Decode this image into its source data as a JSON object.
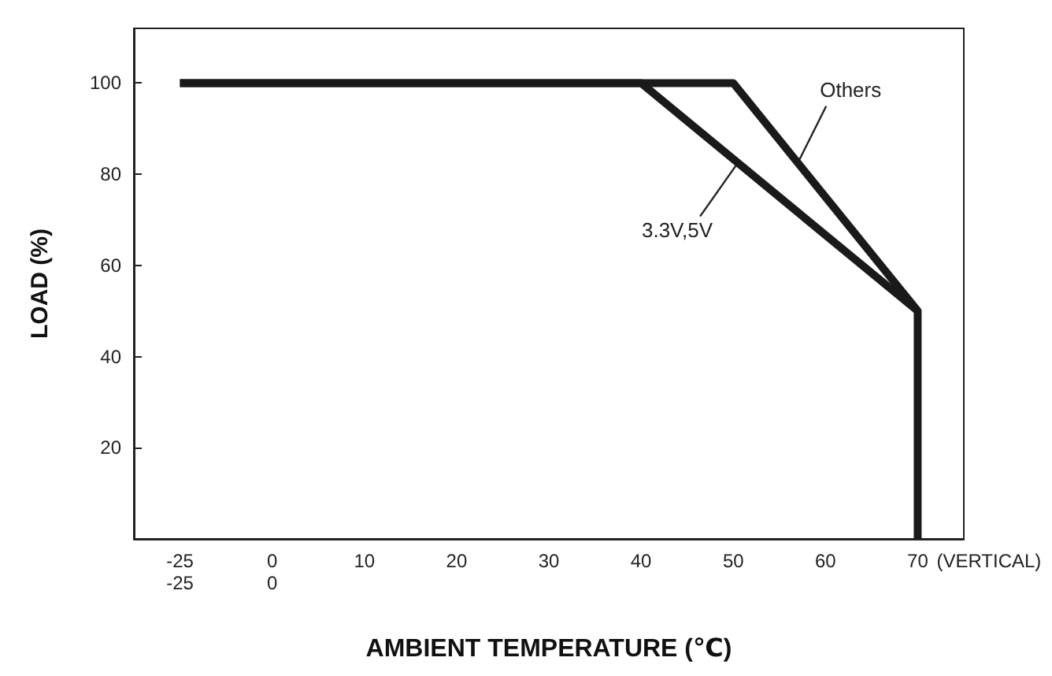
{
  "chart_data": {
    "type": "line",
    "xlabel": "AMBIENT TEMPERATURE (℃)",
    "ylabel": "LOAD (%)",
    "categories": [
      "-25",
      "0",
      "10",
      "20",
      "30",
      "40",
      "50",
      "60",
      "70"
    ],
    "series": [
      {
        "name": "Others",
        "color": "#1a1a1a",
        "x": [
          "-25",
          "50",
          "70",
          "70"
        ],
        "values": [
          100,
          100,
          50,
          0
        ]
      },
      {
        "name": "3.3V,5V",
        "color": "#1a1a1a",
        "x": [
          "-25",
          "40",
          "70"
        ],
        "values": [
          100,
          100,
          50
        ]
      }
    ],
    "ylim": [
      0,
      112
    ],
    "yticks": [
      20,
      40,
      60,
      80,
      100
    ],
    "grid": false,
    "legend": false,
    "marker": "none",
    "line_style": "solid",
    "annotations": [
      "-25",
      "0",
      "(VERTICAL)"
    ]
  }
}
